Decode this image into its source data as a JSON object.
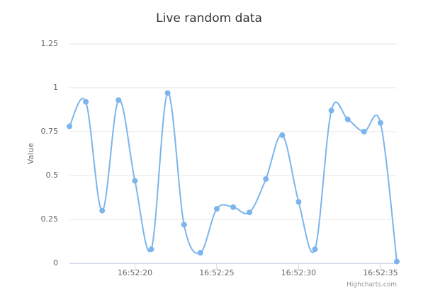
{
  "chart_data": {
    "type": "spline",
    "title": "Live random data",
    "y_label": "Value",
    "credits": "Highcharts.com",
    "x": [
      "16:52:16",
      "16:52:17",
      "16:52:18",
      "16:52:19",
      "16:52:20",
      "16:52:21",
      "16:52:22",
      "16:52:23",
      "16:52:24",
      "16:52:25",
      "16:52:26",
      "16:52:27",
      "16:52:28",
      "16:52:29",
      "16:52:30",
      "16:52:31",
      "16:52:32",
      "16:52:33",
      "16:52:34",
      "16:52:35",
      "16:52:36"
    ],
    "series": [
      {
        "name": "Random data",
        "color": "#7cb5ec",
        "values": [
          0.78,
          0.92,
          0.3,
          0.93,
          0.47,
          0.08,
          0.97,
          0.22,
          0.06,
          0.31,
          0.32,
          0.29,
          0.48,
          0.73,
          0.35,
          0.08,
          0.87,
          0.82,
          0.75,
          0.8,
          0.01
        ]
      }
    ],
    "xlim": [
      "16:52:16",
      "16:52:36"
    ],
    "xticks": [
      "16:52:20",
      "16:52:25",
      "16:52:30",
      "16:52:35"
    ],
    "ylim": [
      0,
      1.25
    ],
    "yticks": [
      0,
      0.25,
      0.5,
      0.75,
      1,
      1.25
    ],
    "grid": true
  }
}
